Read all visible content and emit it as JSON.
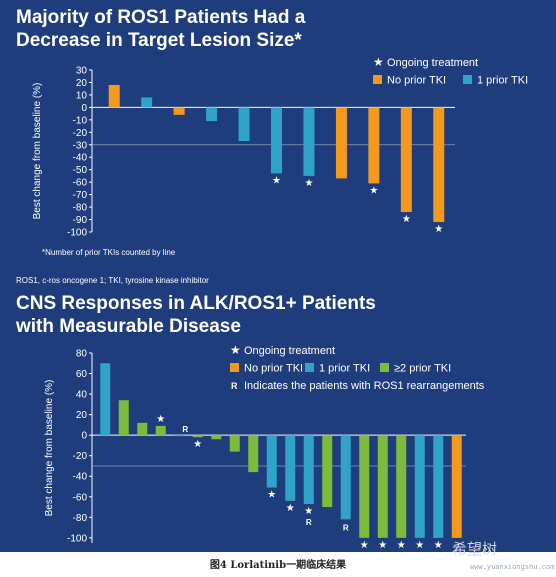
{
  "colors": {
    "background": "#1f3c7c",
    "orange": "#f29a1d",
    "blue": "#2fa3c8",
    "green": "#7dbb3c",
    "text": "#ffffff",
    "grid": "#8090b8"
  },
  "figure_caption": "图4 Lorlatinib一期临床结果",
  "watermark": {
    "text": "希望树",
    "url": "www.yuanxiongshu.com"
  },
  "panel1": {
    "title": "Majority of ROS1 Patients Had a Decrease in Target Lesion Size*",
    "footnote": "*Number of prior TKIs counted by line",
    "abbreviation": "ROS1, c-ros oncogene 1; TKI, tyrosine kinase inhibitor",
    "legend": {
      "star_label": "Ongoing treatment",
      "items": [
        {
          "label": "No prior TKI",
          "color": "#f29a1d"
        },
        {
          "label": "1 prior TKI",
          "color": "#2fa3c8"
        }
      ]
    }
  },
  "panel2": {
    "title": "CNS Responses in ALK/ROS1+ Patients with Measurable Disease",
    "legend": {
      "star_label": "Ongoing treatment",
      "items": [
        {
          "label": "No prior TKI",
          "color": "#f29a1d"
        },
        {
          "label": "1 prior TKI",
          "color": "#2fa3c8"
        },
        {
          "label": "≥2 prior TKI",
          "color": "#7dbb3c"
        }
      ],
      "r_marker": "R",
      "r_label": "Indicates the patients with ROS1 rearrangements"
    }
  },
  "chart_data": [
    {
      "type": "bar",
      "ylabel": "Best change from baseline (%)",
      "ylim": [
        -100,
        30
      ],
      "yticks": [
        30,
        20,
        10,
        0,
        -10,
        -20,
        -30,
        -40,
        -50,
        -60,
        -70,
        -80,
        -90,
        -100
      ],
      "reference_line": -30,
      "series": [
        {
          "name": "No prior TKI",
          "color": "#f29a1d"
        },
        {
          "name": "1 prior TKI",
          "color": "#2fa3c8"
        }
      ],
      "bars": [
        {
          "value": 18,
          "series": "No prior TKI",
          "ongoing": false
        },
        {
          "value": 8,
          "series": "1 prior TKI",
          "ongoing": false
        },
        {
          "value": -6,
          "series": "No prior TKI",
          "ongoing": false
        },
        {
          "value": -11,
          "series": "1 prior TKI",
          "ongoing": false
        },
        {
          "value": -27,
          "series": "1 prior TKI",
          "ongoing": false
        },
        {
          "value": -53,
          "series": "1 prior TKI",
          "ongoing": true
        },
        {
          "value": -55,
          "series": "1 prior TKI",
          "ongoing": true
        },
        {
          "value": -57,
          "series": "No prior TKI",
          "ongoing": false
        },
        {
          "value": -61,
          "series": "No prior TKI",
          "ongoing": true
        },
        {
          "value": -84,
          "series": "No prior TKI",
          "ongoing": true
        },
        {
          "value": -92,
          "series": "No prior TKI",
          "ongoing": true
        }
      ]
    },
    {
      "type": "bar",
      "ylabel": "Best change from baseline (%)",
      "ylim": [
        -105,
        80
      ],
      "yticks": [
        80,
        60,
        40,
        20,
        0,
        -20,
        -40,
        -60,
        -80,
        -100
      ],
      "reference_line": -30,
      "series": [
        {
          "name": "No prior TKI",
          "color": "#f29a1d"
        },
        {
          "name": "1 prior TKI",
          "color": "#2fa3c8"
        },
        {
          "name": "≥2 prior TKI",
          "color": "#7dbb3c"
        }
      ],
      "bars": [
        {
          "value": 70,
          "series": "1 prior TKI",
          "ongoing": false,
          "ros1": false
        },
        {
          "value": 34,
          "series": "≥2 prior TKI",
          "ongoing": false,
          "ros1": false
        },
        {
          "value": 12,
          "series": "≥2 prior TKI",
          "ongoing": false,
          "ros1": false
        },
        {
          "value": 9,
          "series": "≥2 prior TKI",
          "ongoing": true,
          "ros1": false
        },
        {
          "value": 0,
          "series": "1 prior TKI",
          "ongoing": false,
          "ros1": true
        },
        {
          "value": -2,
          "series": "≥2 prior TKI",
          "ongoing": true,
          "ros1": false
        },
        {
          "value": -4,
          "series": "≥2 prior TKI",
          "ongoing": false,
          "ros1": false
        },
        {
          "value": -16,
          "series": "≥2 prior TKI",
          "ongoing": false,
          "ros1": false
        },
        {
          "value": -36,
          "series": "≥2 prior TKI",
          "ongoing": false,
          "ros1": false
        },
        {
          "value": -51,
          "series": "1 prior TKI",
          "ongoing": true,
          "ros1": false
        },
        {
          "value": -64,
          "series": "1 prior TKI",
          "ongoing": true,
          "ros1": false
        },
        {
          "value": -67,
          "series": "1 prior TKI",
          "ongoing": true,
          "ros1": true
        },
        {
          "value": -70,
          "series": "≥2 prior TKI",
          "ongoing": false,
          "ros1": false
        },
        {
          "value": -82,
          "series": "1 prior TKI",
          "ongoing": false,
          "ros1": true
        },
        {
          "value": -100,
          "series": "≥2 prior TKI",
          "ongoing": true,
          "ros1": false
        },
        {
          "value": -100,
          "series": "≥2 prior TKI",
          "ongoing": true,
          "ros1": false
        },
        {
          "value": -100,
          "series": "≥2 prior TKI",
          "ongoing": true,
          "ros1": false
        },
        {
          "value": -100,
          "series": "1 prior TKI",
          "ongoing": true,
          "ros1": false
        },
        {
          "value": -100,
          "series": "1 prior TKI",
          "ongoing": true,
          "ros1": false
        },
        {
          "value": -100,
          "series": "No prior TKI",
          "ongoing": false,
          "ros1": false
        }
      ]
    }
  ]
}
